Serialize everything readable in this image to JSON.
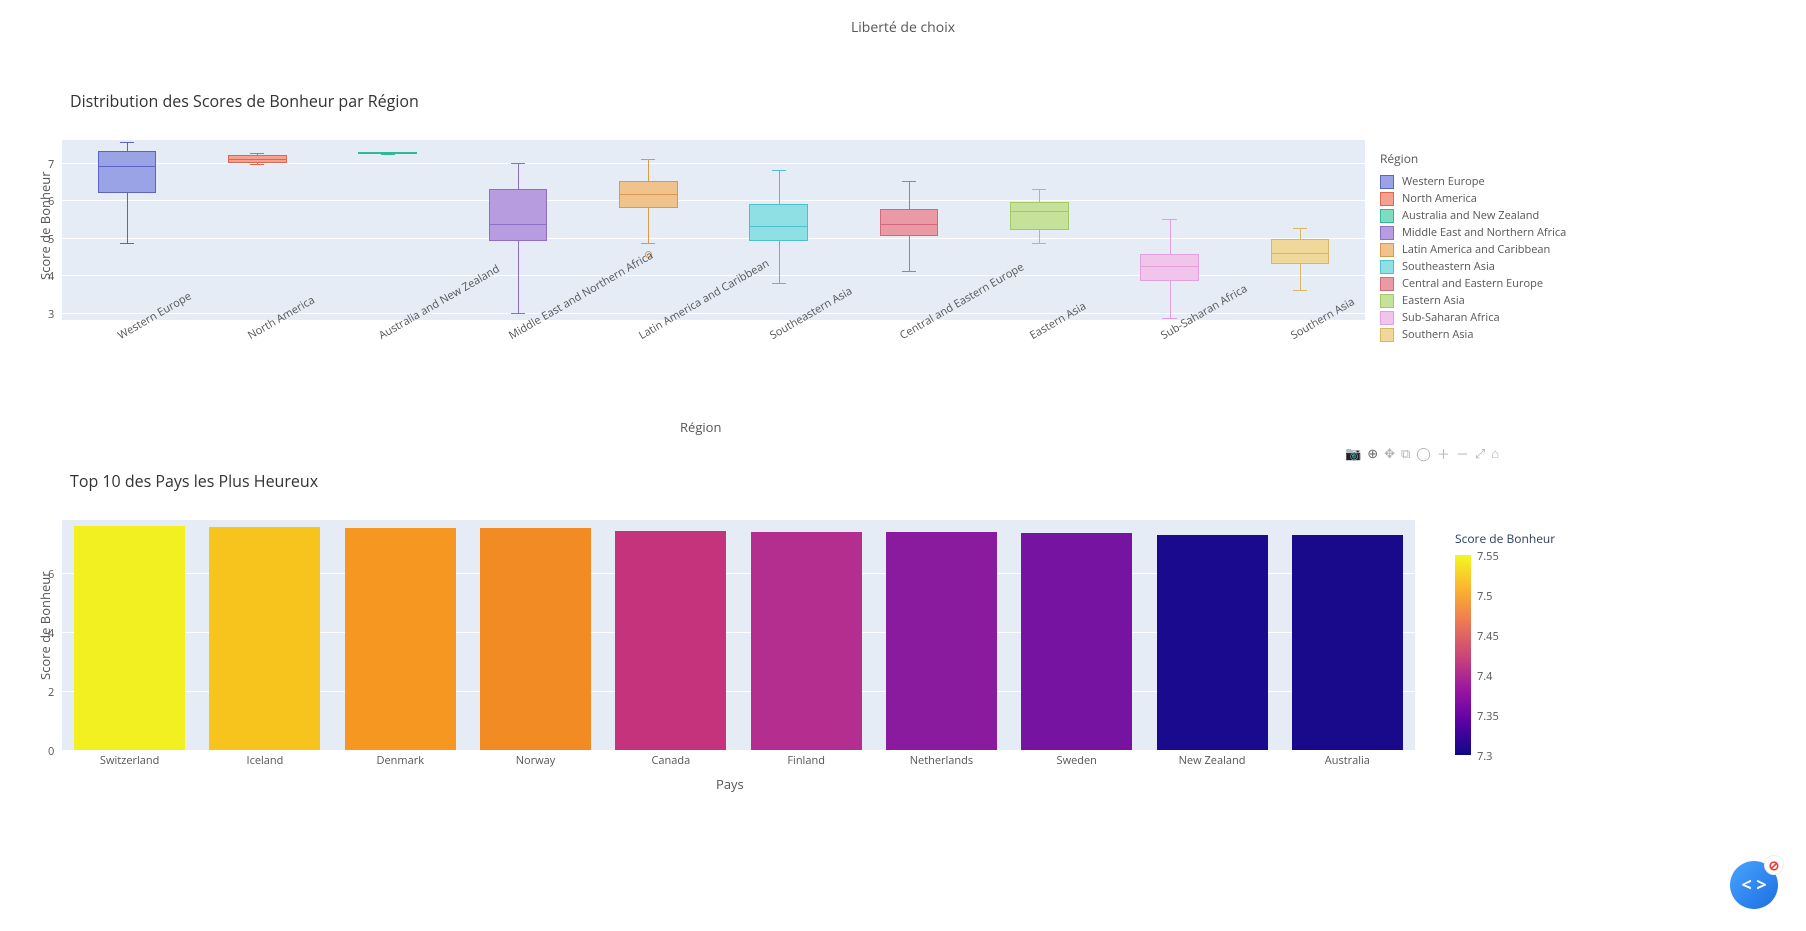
{
  "top_axis_label": "Liberté de choix",
  "boxplot": {
    "title": "Distribution des Scores de Bonheur par Région",
    "y_label": "Score de Bonheur",
    "x_label": "Région",
    "legend_title": "Région",
    "background_color": "#e5ecf6",
    "ylim": [
      2.8,
      7.6
    ],
    "yticks": [
      3,
      4,
      5,
      6,
      7
    ],
    "categories": [
      {
        "name": "Western Europe",
        "fill": "#9aa3e6",
        "line": "#5b64c4",
        "min": 4.85,
        "q1": 6.2,
        "median": 6.9,
        "q3": 7.3,
        "max": 7.55
      },
      {
        "name": "North America",
        "fill": "#f4a28f",
        "line": "#e06650",
        "min": 6.95,
        "q1": 7.0,
        "median": 7.1,
        "q3": 7.2,
        "max": 7.25
      },
      {
        "name": "Australia and New Zealand",
        "fill": "#7edcc0",
        "line": "#2fb89a",
        "min": 7.22,
        "q1": 7.23,
        "median": 7.25,
        "q3": 7.27,
        "max": 7.28
      },
      {
        "name": "Middle East and Northern Africa",
        "fill": "#b79de0",
        "line": "#8d6fc7",
        "min": 3.0,
        "q1": 4.9,
        "median": 5.35,
        "q3": 6.3,
        "max": 7.0
      },
      {
        "name": "Latin America and Caribbean",
        "fill": "#f0c38c",
        "line": "#d99a4e",
        "min": 4.85,
        "q1": 5.8,
        "median": 6.15,
        "q3": 6.5,
        "max": 7.1,
        "outliers": [
          4.55
        ]
      },
      {
        "name": "Southeastern Asia",
        "fill": "#8fe0e4",
        "line": "#4cc1cc",
        "min": 3.8,
        "q1": 4.9,
        "median": 5.3,
        "q3": 5.9,
        "max": 6.8
      },
      {
        "name": "Central and Eastern Europe",
        "fill": "#e99aa4",
        "line": "#d46a79",
        "min": 4.1,
        "q1": 5.05,
        "median": 5.35,
        "q3": 5.75,
        "max": 6.5
      },
      {
        "name": "Eastern Asia",
        "fill": "#c6e29a",
        "line": "#a0c968",
        "min": 4.85,
        "q1": 5.2,
        "median": 5.7,
        "q3": 5.95,
        "max": 6.3
      },
      {
        "name": "Sub-Saharan Africa",
        "fill": "#f1c4ec",
        "line": "#e29fd9",
        "min": 2.85,
        "q1": 3.85,
        "median": 4.25,
        "q3": 4.55,
        "max": 5.5
      },
      {
        "name": "Southern Asia",
        "fill": "#f0d79a",
        "line": "#d8b662",
        "min": 3.6,
        "q1": 4.3,
        "median": 4.6,
        "q3": 4.95,
        "max": 5.25
      }
    ]
  },
  "barplot": {
    "title": "Top 10 des Pays les Plus Heureux",
    "y_label": "Score de Bonheur",
    "x_label": "Pays",
    "colorbar_title": "Score de Bonheur",
    "background_color": "#e5ecf6",
    "ylim": [
      0,
      7.8
    ],
    "yticks": [
      0,
      2,
      4,
      6
    ],
    "cb_ticks": [
      7.3,
      7.35,
      7.4,
      7.45,
      7.5,
      7.55
    ],
    "bars": [
      {
        "name": "Switzerland",
        "value": 7.587,
        "color": "#f3f022"
      },
      {
        "name": "Iceland",
        "value": 7.561,
        "color": "#f7c41e"
      },
      {
        "name": "Denmark",
        "value": 7.527,
        "color": "#f59721"
      },
      {
        "name": "Norway",
        "value": 7.522,
        "color": "#f38b24"
      },
      {
        "name": "Canada",
        "value": 7.427,
        "color": "#c4337c"
      },
      {
        "name": "Finland",
        "value": 7.406,
        "color": "#b32e8e"
      },
      {
        "name": "Netherlands",
        "value": 7.378,
        "color": "#8a1a9e"
      },
      {
        "name": "Sweden",
        "value": 7.364,
        "color": "#7614a1"
      },
      {
        "name": "New Zealand",
        "value": 7.286,
        "color": "#1a0b8e"
      },
      {
        "name": "Australia",
        "value": 7.284,
        "color": "#180a8a"
      }
    ],
    "plasma_gradient": "linear-gradient(to top,#0d0887,#5c01a6,#9c179e,#cc4778,#ed7953,#fdb42f,#f0f921)"
  },
  "modebar_icons": [
    "camera-icon",
    "zoom-icon",
    "pan-icon",
    "select-icon",
    "lasso-icon",
    "zoomin-icon",
    "zoomout-icon",
    "autoscale-icon",
    "reset-icon"
  ]
}
